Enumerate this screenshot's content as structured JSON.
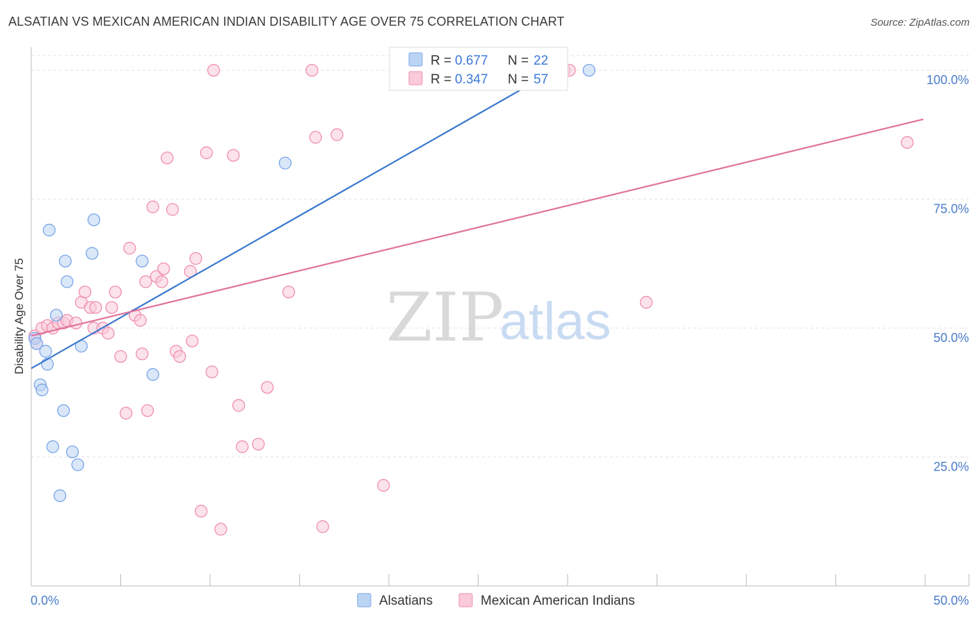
{
  "header": {
    "title": "ALSATIAN VS MEXICAN AMERICAN INDIAN DISABILITY AGE OVER 75 CORRELATION CHART",
    "source": "Source: ZipAtlas.com"
  },
  "watermark": {
    "zip": "ZIP",
    "atlas": "atlas"
  },
  "legend": {
    "r_label": "R =",
    "n_label": "N =",
    "rows": [
      {
        "r": "0.677",
        "n": "22",
        "color": "#7aa6e8",
        "fill": "#bcd4f4"
      },
      {
        "r": "0.347",
        "n": "57",
        "color": "#ef8fb0",
        "fill": "#f9cad9"
      }
    ]
  },
  "bottom_legend": {
    "items": [
      {
        "label": "Alsatians",
        "color": "#7aa6e8",
        "fill": "#bcd4f4"
      },
      {
        "label": "Mexican American Indians",
        "color": "#ef8fb0",
        "fill": "#f9cad9"
      }
    ]
  },
  "chart_data": {
    "type": "scatter",
    "title": "ALSATIAN VS MEXICAN AMERICAN INDIAN DISABILITY AGE OVER 75 CORRELATION CHART",
    "xlabel": "",
    "ylabel": "Disability Age Over 75",
    "xlim": [
      0,
      50
    ],
    "ylim": [
      0,
      105
    ],
    "x_tick_labels": [
      "0.0%",
      "50.0%"
    ],
    "y_ticks": [
      25,
      50,
      75,
      100
    ],
    "y_tick_labels": [
      "25.0%",
      "50.0%",
      "75.0%",
      "100.0%"
    ],
    "grid": true,
    "legend_position": "top-center",
    "series": [
      {
        "name": "Alsatians",
        "color": "#3a78cf",
        "point_color": "#7aa6e8",
        "trend": {
          "x": [
            0,
            29.3
          ],
          "y": [
            42.2,
            100.0
          ]
        },
        "points": [
          [
            0.2,
            48.0
          ],
          [
            0.3,
            47.0
          ],
          [
            0.5,
            39.0
          ],
          [
            0.6,
            38.0
          ],
          [
            0.8,
            45.5
          ],
          [
            0.9,
            43.0
          ],
          [
            1.0,
            69.0
          ],
          [
            1.2,
            27.0
          ],
          [
            1.4,
            52.5
          ],
          [
            1.6,
            17.5
          ],
          [
            1.8,
            34.0
          ],
          [
            1.9,
            63.0
          ],
          [
            2.0,
            59.0
          ],
          [
            2.3,
            26.0
          ],
          [
            2.6,
            23.5
          ],
          [
            2.8,
            46.5
          ],
          [
            3.4,
            64.5
          ],
          [
            3.5,
            71.0
          ],
          [
            6.2,
            63.0
          ],
          [
            6.8,
            41.0
          ],
          [
            14.2,
            82.0
          ],
          [
            31.2,
            100.0
          ]
        ]
      },
      {
        "name": "Mexican American Indians",
        "color": "#e0729b",
        "point_color": "#ef8fb0",
        "trend": {
          "x": [
            0,
            49.9
          ],
          "y": [
            48.5,
            90.5
          ]
        },
        "points": [
          [
            0.2,
            48.5
          ],
          [
            0.3,
            47.0
          ],
          [
            0.6,
            50.0
          ],
          [
            0.9,
            50.5
          ],
          [
            1.2,
            50.0
          ],
          [
            1.5,
            51.0
          ],
          [
            1.8,
            51.0
          ],
          [
            2.0,
            51.5
          ],
          [
            2.5,
            51.0
          ],
          [
            2.8,
            55.0
          ],
          [
            3.0,
            57.0
          ],
          [
            3.3,
            54.0
          ],
          [
            3.5,
            50.0
          ],
          [
            3.6,
            54.0
          ],
          [
            4.0,
            50.0
          ],
          [
            4.3,
            49.0
          ],
          [
            4.5,
            54.0
          ],
          [
            4.7,
            57.0
          ],
          [
            5.0,
            44.5
          ],
          [
            5.3,
            33.5
          ],
          [
            5.5,
            65.5
          ],
          [
            5.8,
            52.5
          ],
          [
            6.1,
            51.5
          ],
          [
            6.2,
            45.0
          ],
          [
            6.4,
            59.0
          ],
          [
            6.5,
            34.0
          ],
          [
            6.8,
            73.5
          ],
          [
            7.0,
            60.0
          ],
          [
            7.3,
            59.0
          ],
          [
            7.4,
            61.5
          ],
          [
            7.6,
            83.0
          ],
          [
            7.9,
            73.0
          ],
          [
            8.1,
            45.5
          ],
          [
            8.3,
            44.5
          ],
          [
            8.9,
            61.0
          ],
          [
            9.0,
            47.5
          ],
          [
            9.2,
            63.5
          ],
          [
            9.5,
            14.5
          ],
          [
            9.8,
            84.0
          ],
          [
            10.1,
            41.5
          ],
          [
            10.2,
            100.0
          ],
          [
            10.6,
            11.0
          ],
          [
            11.3,
            83.5
          ],
          [
            11.6,
            35.0
          ],
          [
            11.8,
            27.0
          ],
          [
            12.7,
            27.5
          ],
          [
            13.2,
            38.5
          ],
          [
            14.4,
            57.0
          ],
          [
            15.7,
            100.0
          ],
          [
            15.9,
            87.0
          ],
          [
            16.3,
            11.5
          ],
          [
            17.1,
            87.5
          ],
          [
            19.7,
            19.5
          ],
          [
            29.8,
            100.0
          ],
          [
            30.1,
            100.0
          ],
          [
            34.4,
            55.0
          ],
          [
            49.0,
            86.0
          ]
        ]
      }
    ]
  }
}
